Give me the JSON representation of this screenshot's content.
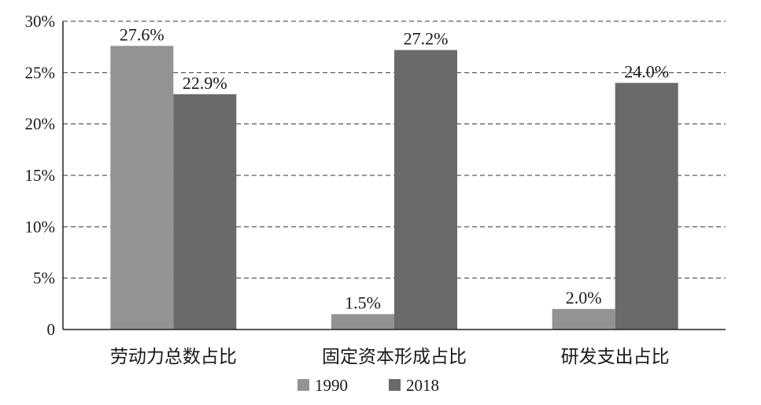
{
  "chart_data": {
    "type": "bar",
    "categories": [
      "劳动力总数占比",
      "固定资本形成占比",
      "研发支出占比"
    ],
    "series": [
      {
        "name": "1990",
        "values": [
          27.6,
          1.5,
          2.0
        ],
        "labels": [
          "27.6%",
          "1.5%",
          "2.0%"
        ],
        "color": "#939393"
      },
      {
        "name": "2018",
        "values": [
          22.9,
          27.2,
          24.0
        ],
        "labels": [
          "22.9%",
          "27.2%",
          "24.0%"
        ],
        "color": "#6a6a6d"
      }
    ],
    "ylim": [
      0,
      30
    ],
    "yticks": [
      {
        "value": 0,
        "label": "0"
      },
      {
        "value": 5,
        "label": "5%"
      },
      {
        "value": 10,
        "label": "10%"
      },
      {
        "value": 15,
        "label": "15%"
      },
      {
        "value": 20,
        "label": "20%"
      },
      {
        "value": 25,
        "label": "25%"
      },
      {
        "value": 30,
        "label": "30%"
      }
    ],
    "grid": true,
    "grid_style": "dashed",
    "legend_position": "bottom-center"
  }
}
